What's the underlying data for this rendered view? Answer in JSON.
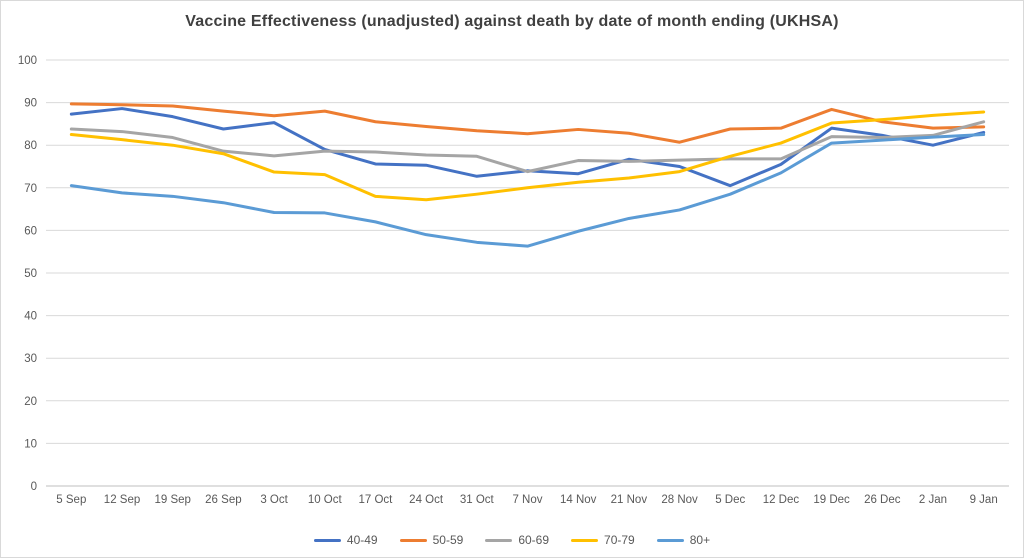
{
  "chart_data": {
    "type": "line",
    "title": "Vaccine Effectiveness (unadjusted) against death by date of month ending (UKHSA)",
    "categories": [
      "5 Sep",
      "12 Sep",
      "19 Sep",
      "26 Sep",
      "3 Oct",
      "10 Oct",
      "17 Oct",
      "24 Oct",
      "31 Oct",
      "7 Nov",
      "14 Nov",
      "21 Nov",
      "28 Nov",
      "5 Dec",
      "12 Dec",
      "19 Dec",
      "26 Dec",
      "2 Jan",
      "9 Jan"
    ],
    "series": [
      {
        "name": "40-49",
        "color": "#4472C4",
        "values": [
          87.3,
          88.6,
          86.7,
          83.8,
          85.3,
          79.0,
          75.6,
          75.3,
          72.7,
          74.0,
          73.3,
          76.7,
          75.0,
          70.5,
          75.5,
          84.0,
          82.3,
          80.0,
          83.0
        ]
      },
      {
        "name": "50-59",
        "color": "#ED7D31",
        "values": [
          89.7,
          89.5,
          89.2,
          88.0,
          86.9,
          88.0,
          85.5,
          84.4,
          83.4,
          82.7,
          83.7,
          82.8,
          80.7,
          83.8,
          84.0,
          88.4,
          85.5,
          84.0,
          84.3
        ]
      },
      {
        "name": "60-69",
        "color": "#A5A5A5",
        "values": [
          83.8,
          83.2,
          81.8,
          78.6,
          77.5,
          78.6,
          78.4,
          77.7,
          77.4,
          73.8,
          76.4,
          76.2,
          76.5,
          76.8,
          76.8,
          82.0,
          81.8,
          82.3,
          85.5
        ]
      },
      {
        "name": "70-79",
        "color": "#FFC000",
        "values": [
          82.5,
          81.3,
          80.0,
          78.0,
          73.7,
          73.1,
          68.0,
          67.2,
          68.5,
          70.0,
          71.3,
          72.3,
          73.8,
          77.4,
          80.5,
          85.2,
          86.0,
          87.0,
          87.8
        ]
      },
      {
        "name": "80+",
        "color": "#5B9BD5",
        "values": [
          70.5,
          68.8,
          68.0,
          66.5,
          64.2,
          64.1,
          62.0,
          59.0,
          57.2,
          56.3,
          59.8,
          62.8,
          64.8,
          68.5,
          73.5,
          80.5,
          81.2,
          81.9,
          82.5
        ]
      }
    ],
    "ylim": [
      0,
      100
    ],
    "ytick_step": 10,
    "yticks": [
      "0",
      "10",
      "20",
      "30",
      "40",
      "50",
      "60",
      "70",
      "80",
      "90",
      "100"
    ],
    "grid": "horizontal",
    "legend_position": "bottom",
    "grid_color": "#D9D9D9",
    "axis_color": "#BFBFBF",
    "label_color": "#595959",
    "title_color": "#404040"
  }
}
